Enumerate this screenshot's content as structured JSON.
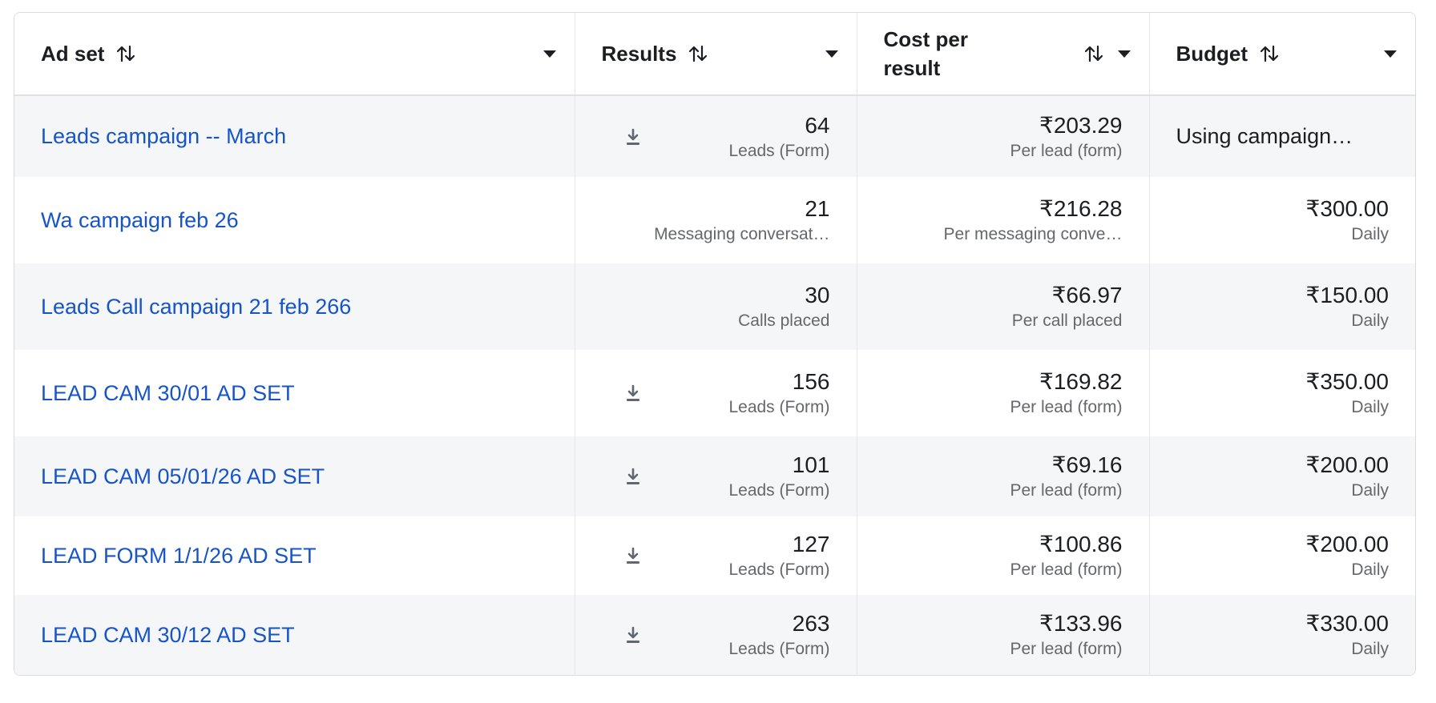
{
  "columns": {
    "ad_set": "Ad set",
    "results": "Results",
    "cost_per_result": "Cost per result",
    "budget": "Budget"
  },
  "rows": [
    {
      "name": "Leads campaign -- March",
      "result_value": "64",
      "result_type": "Leads (Form)",
      "download_icon": true,
      "cost_value": "₹203.29",
      "cost_type": "Per lead (form)",
      "budget_text": "Using campaign…",
      "budget_value": "",
      "budget_type": ""
    },
    {
      "name": "Wa campaign feb 26",
      "result_value": "21",
      "result_type": "Messaging conversat…",
      "download_icon": false,
      "cost_value": "₹216.28",
      "cost_type": "Per messaging conve…",
      "budget_text": "",
      "budget_value": "₹300.00",
      "budget_type": "Daily"
    },
    {
      "name": "Leads Call campaign 21 feb 266",
      "result_value": "30",
      "result_type": "Calls placed",
      "download_icon": false,
      "cost_value": "₹66.97",
      "cost_type": "Per call placed",
      "budget_text": "",
      "budget_value": "₹150.00",
      "budget_type": "Daily"
    },
    {
      "name": "LEAD CAM 30/01 AD SET",
      "result_value": "156",
      "result_type": "Leads (Form)",
      "download_icon": true,
      "cost_value": "₹169.82",
      "cost_type": "Per lead (form)",
      "budget_text": "",
      "budget_value": "₹350.00",
      "budget_type": "Daily"
    },
    {
      "name": "LEAD CAM 05/01/26 AD SET",
      "result_value": "101",
      "result_type": "Leads (Form)",
      "download_icon": true,
      "cost_value": "₹69.16",
      "cost_type": "Per lead (form)",
      "budget_text": "",
      "budget_value": "₹200.00",
      "budget_type": "Daily"
    },
    {
      "name": "LEAD FORM 1/1/26 AD SET",
      "result_value": "127",
      "result_type": "Leads (Form)",
      "download_icon": true,
      "cost_value": "₹100.86",
      "cost_type": "Per lead (form)",
      "budget_text": "",
      "budget_value": "₹200.00",
      "budget_type": "Daily"
    },
    {
      "name": "LEAD CAM 30/12 AD SET",
      "result_value": "263",
      "result_type": "Leads (Form)",
      "download_icon": true,
      "cost_value": "₹133.96",
      "cost_type": "Per lead (form)",
      "budget_text": "",
      "budget_value": "₹330.00",
      "budget_type": "Daily"
    }
  ],
  "colors": {
    "link": "#1654c8",
    "row_shade": "#f5f6f7",
    "text": "#1c1e21",
    "muted": "#65676b"
  }
}
